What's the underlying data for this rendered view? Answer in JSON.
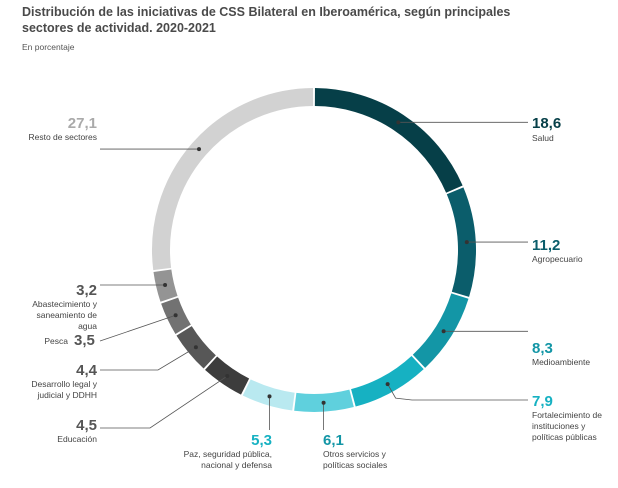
{
  "title": "Distribución de las iniciativas de CSS Bilateral en Iberoamérica, según principales sectores de actividad. 2020-2021",
  "subtitle": "En porcentaje",
  "chart_data": {
    "type": "pie",
    "style": "donut",
    "unit": "%",
    "categories": [
      "Salud",
      "Agropecuario",
      "Medioambiente",
      "Fortalecimiento de instituciones y políticas públicas",
      "Otros servicios y políticas sociales",
      "Paz, seguridad pública, nacional y defensa",
      "Educación",
      "Desarrollo legal y judicial y DDHH",
      "Pesca",
      "Abastecimiento y saneamiento de agua",
      "Resto de sectores"
    ],
    "values": [
      18.6,
      11.2,
      8.3,
      7.9,
      6.1,
      5.3,
      4.5,
      4.4,
      3.5,
      3.2,
      27.1
    ],
    "value_labels": [
      "18,6",
      "11,2",
      "8,3",
      "7,9",
      "6,1",
      "5,3",
      "4,5",
      "4,4",
      "3,5",
      "3,2",
      "27,1"
    ],
    "colors": [
      "#063f48",
      "#0b5d6b",
      "#1396a6",
      "#16b1c2",
      "#5fd0dd",
      "#b9e9f0",
      "#3d3d3d",
      "#575757",
      "#727272",
      "#949494",
      "#d2d2d2"
    ],
    "label_colors": [
      "#063f48",
      "#0b5d6b",
      "#1396a6",
      "#16b1c2",
      "#1396a6",
      "#16b1c2",
      "#555555",
      "#555555",
      "#555555",
      "#555555",
      "#aaaaaa"
    ]
  }
}
